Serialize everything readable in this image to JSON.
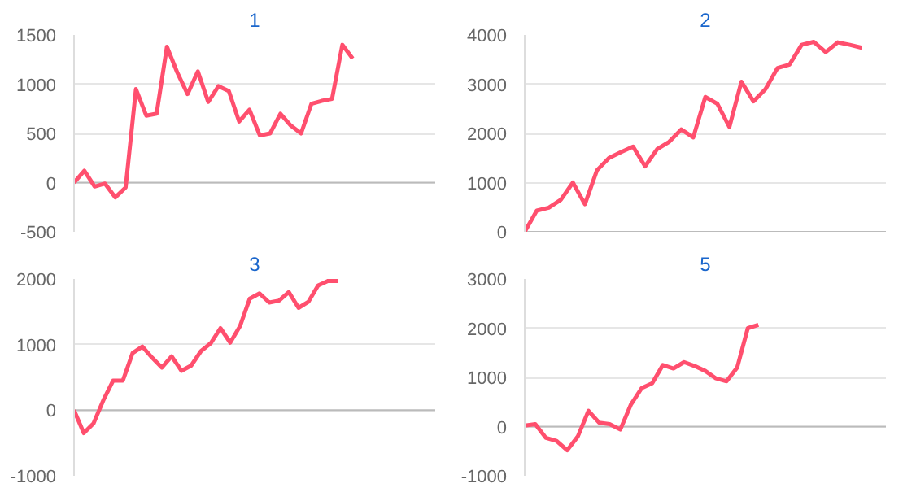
{
  "chart_data": [
    {
      "type": "line",
      "title": "1",
      "categories": [
        null,
        null,
        null,
        null,
        null,
        null,
        null,
        null,
        null,
        null,
        null,
        null,
        null,
        null,
        null,
        null,
        null,
        null,
        null,
        null,
        null,
        null,
        null,
        null,
        null,
        null,
        null,
        null,
        null,
        null,
        null,
        null,
        null,
        null,
        null,
        null
      ],
      "series": [
        {
          "color": "#ff4f6e",
          "values": [
            0,
            120,
            -40,
            -10,
            -150,
            -50,
            950,
            680,
            700,
            1380,
            1120,
            900,
            1130,
            820,
            980,
            930,
            620,
            740,
            480,
            500,
            700,
            580,
            500,
            800,
            830,
            850,
            1400,
            1260,
            null,
            null,
            null,
            null,
            null,
            null,
            null,
            null
          ]
        }
      ],
      "ylim": [
        -500,
        1500
      ],
      "yticks": [
        -500,
        0,
        500,
        1000,
        1500
      ],
      "grid": "y",
      "marker": "none",
      "line_style": "solid",
      "tick_labels": "y"
    },
    {
      "type": "line",
      "title": "2",
      "categories": [
        null,
        null,
        null,
        null,
        null,
        null,
        null,
        null,
        null,
        null,
        null,
        null,
        null,
        null,
        null,
        null,
        null,
        null,
        null,
        null,
        null,
        null,
        null,
        null,
        null,
        null,
        null,
        null,
        null,
        null,
        null
      ],
      "series": [
        {
          "color": "#ff4f6e",
          "values": [
            0,
            430,
            490,
            650,
            1000,
            560,
            1250,
            1500,
            1620,
            1730,
            1330,
            1680,
            1830,
            2080,
            1920,
            2740,
            2600,
            2130,
            3050,
            2650,
            2900,
            3330,
            3400,
            3800,
            3860,
            3650,
            3850,
            3800,
            3740,
            null,
            null
          ]
        }
      ],
      "ylim": [
        0,
        4000
      ],
      "yticks": [
        0,
        1000,
        2000,
        3000,
        4000
      ],
      "grid": "y",
      "marker": "none",
      "line_style": "solid",
      "tick_labels": "y"
    },
    {
      "type": "line",
      "title": "3",
      "categories": [
        null,
        null,
        null,
        null,
        null,
        null,
        null,
        null,
        null,
        null,
        null,
        null,
        null,
        null,
        null,
        null,
        null,
        null,
        null,
        null,
        null,
        null,
        null,
        null,
        null,
        null,
        null,
        null,
        null,
        null,
        null,
        null,
        null,
        null,
        null,
        null,
        null,
        null
      ],
      "series": [
        {
          "color": "#ff4f6e",
          "values": [
            0,
            -350,
            -200,
            150,
            450,
            450,
            870,
            970,
            800,
            650,
            820,
            600,
            680,
            900,
            1020,
            1250,
            1030,
            1280,
            1700,
            1780,
            1640,
            1670,
            1800,
            1560,
            1650,
            1900,
            1970,
            1970,
            null,
            null,
            null,
            null,
            null,
            null,
            null,
            null,
            null,
            null
          ]
        }
      ],
      "ylim": [
        -1000,
        2000
      ],
      "yticks": [
        -1000,
        0,
        1000,
        2000
      ],
      "grid": "y",
      "marker": "none",
      "line_style": "solid",
      "tick_labels": "y"
    },
    {
      "type": "line",
      "title": "5",
      "categories": [
        null,
        null,
        null,
        null,
        null,
        null,
        null,
        null,
        null,
        null,
        null,
        null,
        null,
        null,
        null,
        null,
        null,
        null,
        null,
        null,
        null,
        null,
        null,
        null,
        null,
        null,
        null,
        null,
        null,
        null,
        null,
        null,
        null,
        null,
        null
      ],
      "series": [
        {
          "color": "#ff4f6e",
          "values": [
            20,
            50,
            -230,
            -290,
            -480,
            -200,
            320,
            80,
            50,
            -60,
            450,
            780,
            880,
            1250,
            1180,
            1310,
            1230,
            1130,
            980,
            920,
            1200,
            2000,
            2070,
            null,
            null,
            null,
            null,
            null,
            null,
            null,
            null,
            null,
            null,
            null,
            null
          ]
        }
      ],
      "ylim": [
        -1000,
        3000
      ],
      "yticks": [
        -1000,
        0,
        1000,
        2000,
        3000
      ],
      "grid": "y",
      "marker": "none",
      "line_style": "solid",
      "tick_labels": "y"
    }
  ]
}
